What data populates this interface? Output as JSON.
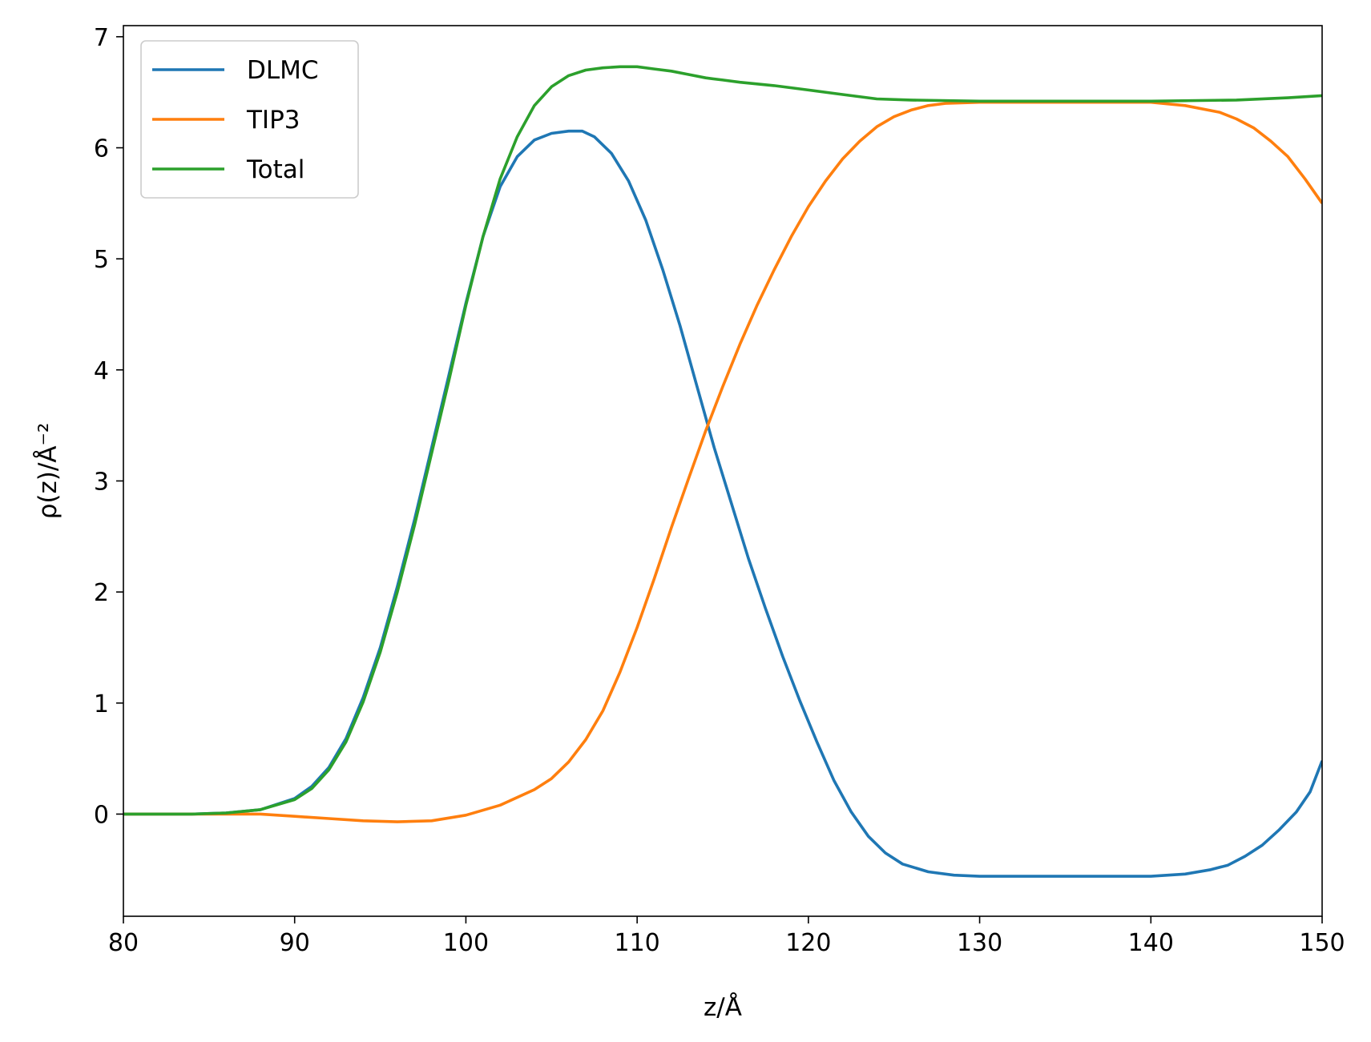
{
  "chart_data": {
    "type": "line",
    "xlabel": "z/Å",
    "ylabel": "ρ(z)/Å⁻²",
    "xlim": [
      80,
      150
    ],
    "ylim": [
      -0.92,
      7.1
    ],
    "x_ticks": [
      80,
      90,
      100,
      110,
      120,
      130,
      140,
      150
    ],
    "y_ticks": [
      0,
      1,
      2,
      3,
      4,
      5,
      6,
      7
    ],
    "grid": false,
    "legend_position": "upper-left",
    "series": [
      {
        "name": "DLMC",
        "color": "#1f77b4",
        "points": [
          [
            80,
            0
          ],
          [
            84,
            0.0
          ],
          [
            86,
            0.01
          ],
          [
            88,
            0.04
          ],
          [
            90,
            0.14
          ],
          [
            91,
            0.25
          ],
          [
            92,
            0.42
          ],
          [
            93,
            0.68
          ],
          [
            94,
            1.05
          ],
          [
            95,
            1.5
          ],
          [
            96,
            2.05
          ],
          [
            97,
            2.65
          ],
          [
            98,
            3.3
          ],
          [
            99,
            3.95
          ],
          [
            100,
            4.6
          ],
          [
            101,
            5.2
          ],
          [
            102,
            5.65
          ],
          [
            103,
            5.92
          ],
          [
            104,
            6.07
          ],
          [
            105,
            6.13
          ],
          [
            106,
            6.15
          ],
          [
            106.8,
            6.15
          ],
          [
            107.5,
            6.1
          ],
          [
            108.5,
            5.95
          ],
          [
            109.5,
            5.7
          ],
          [
            110.5,
            5.35
          ],
          [
            111.5,
            4.9
          ],
          [
            112.5,
            4.4
          ],
          [
            113.5,
            3.85
          ],
          [
            114.5,
            3.3
          ],
          [
            115.5,
            2.8
          ],
          [
            116.5,
            2.3
          ],
          [
            117.5,
            1.85
          ],
          [
            118.5,
            1.42
          ],
          [
            119.5,
            1.02
          ],
          [
            120.5,
            0.65
          ],
          [
            121.5,
            0.3
          ],
          [
            122.5,
            0.02
          ],
          [
            123.5,
            -0.2
          ],
          [
            124.5,
            -0.35
          ],
          [
            125.5,
            -0.45
          ],
          [
            127,
            -0.52
          ],
          [
            128.5,
            -0.55
          ],
          [
            130,
            -0.56
          ],
          [
            135,
            -0.56
          ],
          [
            140,
            -0.56
          ],
          [
            142,
            -0.54
          ],
          [
            143.5,
            -0.5
          ],
          [
            144.5,
            -0.46
          ],
          [
            145.5,
            -0.38
          ],
          [
            146.5,
            -0.28
          ],
          [
            147.5,
            -0.14
          ],
          [
            148.5,
            0.02
          ],
          [
            149.3,
            0.2
          ],
          [
            150,
            0.48
          ]
        ]
      },
      {
        "name": "TIP3",
        "color": "#ff7f0e",
        "points": [
          [
            80,
            0
          ],
          [
            85,
            0
          ],
          [
            88,
            0.0
          ],
          [
            90,
            -0.02
          ],
          [
            92,
            -0.04
          ],
          [
            94,
            -0.06
          ],
          [
            96,
            -0.07
          ],
          [
            98,
            -0.06
          ],
          [
            100,
            -0.01
          ],
          [
            102,
            0.08
          ],
          [
            104,
            0.22
          ],
          [
            105,
            0.32
          ],
          [
            106,
            0.47
          ],
          [
            107,
            0.67
          ],
          [
            108,
            0.93
          ],
          [
            109,
            1.28
          ],
          [
            110,
            1.68
          ],
          [
            111,
            2.12
          ],
          [
            112,
            2.58
          ],
          [
            113,
            3.02
          ],
          [
            114,
            3.45
          ],
          [
            115,
            3.85
          ],
          [
            116,
            4.23
          ],
          [
            117,
            4.58
          ],
          [
            118,
            4.9
          ],
          [
            119,
            5.2
          ],
          [
            120,
            5.47
          ],
          [
            121,
            5.7
          ],
          [
            122,
            5.9
          ],
          [
            123,
            6.06
          ],
          [
            124,
            6.19
          ],
          [
            125,
            6.28
          ],
          [
            126,
            6.34
          ],
          [
            127,
            6.38
          ],
          [
            128,
            6.4
          ],
          [
            130,
            6.41
          ],
          [
            135,
            6.41
          ],
          [
            140,
            6.41
          ],
          [
            142,
            6.38
          ],
          [
            144,
            6.32
          ],
          [
            145,
            6.26
          ],
          [
            146,
            6.18
          ],
          [
            147,
            6.06
          ],
          [
            148,
            5.92
          ],
          [
            149,
            5.72
          ],
          [
            150,
            5.5
          ]
        ]
      },
      {
        "name": "Total",
        "color": "#2ca02c",
        "points": [
          [
            80,
            0
          ],
          [
            84,
            0.0
          ],
          [
            86,
            0.01
          ],
          [
            88,
            0.04
          ],
          [
            90,
            0.13
          ],
          [
            91,
            0.23
          ],
          [
            92,
            0.4
          ],
          [
            93,
            0.65
          ],
          [
            94,
            1.01
          ],
          [
            95,
            1.46
          ],
          [
            96,
            2.0
          ],
          [
            97,
            2.6
          ],
          [
            98,
            3.25
          ],
          [
            99,
            3.9
          ],
          [
            100,
            4.58
          ],
          [
            101,
            5.2
          ],
          [
            102,
            5.72
          ],
          [
            103,
            6.1
          ],
          [
            104,
            6.38
          ],
          [
            105,
            6.55
          ],
          [
            106,
            6.65
          ],
          [
            107,
            6.7
          ],
          [
            108,
            6.72
          ],
          [
            109,
            6.73
          ],
          [
            110,
            6.73
          ],
          [
            111,
            6.71
          ],
          [
            112,
            6.69
          ],
          [
            113,
            6.66
          ],
          [
            114,
            6.63
          ],
          [
            115,
            6.61
          ],
          [
            116,
            6.59
          ],
          [
            118,
            6.56
          ],
          [
            120,
            6.52
          ],
          [
            122,
            6.48
          ],
          [
            124,
            6.44
          ],
          [
            126,
            6.43
          ],
          [
            130,
            6.42
          ],
          [
            135,
            6.42
          ],
          [
            140,
            6.42
          ],
          [
            145,
            6.43
          ],
          [
            148,
            6.45
          ],
          [
            150,
            6.47
          ]
        ]
      }
    ]
  }
}
